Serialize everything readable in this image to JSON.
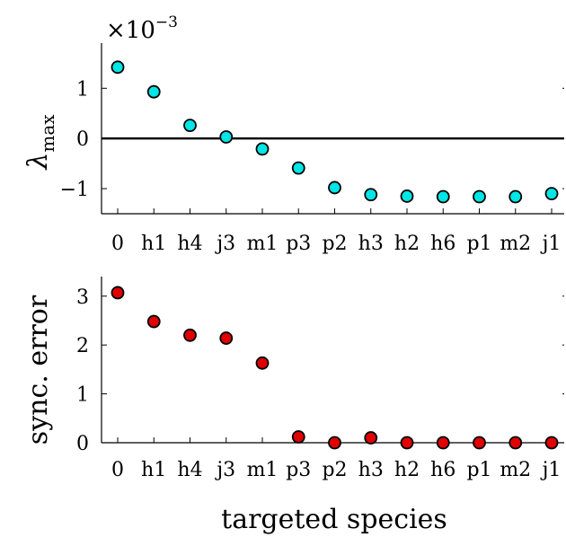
{
  "chart_data": [
    {
      "type": "scatter",
      "title": "",
      "xlabel": "",
      "ylabel_main": "λ",
      "ylabel_sub": "max",
      "scale_prefix": "×10",
      "scale_exponent": "−3",
      "categories": [
        "0",
        "h1",
        "h4",
        "j3",
        "m1",
        "p3",
        "p2",
        "h3",
        "h2",
        "h6",
        "p1",
        "m2",
        "j1"
      ],
      "values": [
        1.42,
        0.93,
        0.26,
        0.03,
        -0.21,
        -0.59,
        -0.98,
        -1.12,
        -1.15,
        -1.16,
        -1.16,
        -1.16,
        -1.1
      ],
      "ylim": [
        -1.5,
        1.9
      ],
      "yticks": [
        -1,
        0,
        1
      ],
      "ytick_labels": [
        "−1",
        "0",
        "1"
      ],
      "zero_line": true,
      "grid": false,
      "marker_color": "#00e5e5"
    },
    {
      "type": "scatter",
      "title": "",
      "xlabel": "targeted species",
      "ylabel": "sync. error",
      "categories": [
        "0",
        "h1",
        "h4",
        "j3",
        "m1",
        "p3",
        "p2",
        "h3",
        "h2",
        "h6",
        "p1",
        "m2",
        "j1"
      ],
      "values": [
        3.07,
        2.48,
        2.2,
        2.14,
        1.63,
        0.12,
        0.0,
        0.1,
        0.0,
        0.0,
        0.0,
        0.0,
        0.0
      ],
      "ylim": [
        0,
        3.4
      ],
      "yticks": [
        0,
        1,
        2,
        3
      ],
      "ytick_labels": [
        "0",
        "1",
        "2",
        "3"
      ],
      "grid": false,
      "marker_color": "#e00000"
    }
  ]
}
